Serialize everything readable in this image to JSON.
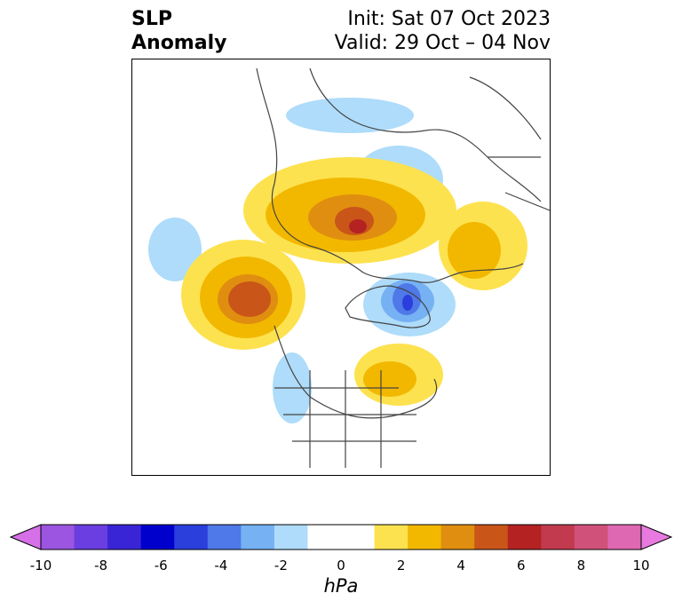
{
  "title": {
    "left_line1": "SLP",
    "left_line2": "Anomaly",
    "right_line1": "Init: Sat 07 Oct 2023",
    "right_line2": "Valid: 29 Oct – 04 Nov"
  },
  "map": {
    "projection": "polar stereographic (North Pole)",
    "variable": "sea level pressure anomaly"
  },
  "colorbar": {
    "units": "hPa",
    "ticks": [
      "-10",
      "-8",
      "-6",
      "-4",
      "-2",
      "0",
      "2",
      "4",
      "6",
      "8",
      "10"
    ],
    "min": -10,
    "max": 10,
    "extend": "both",
    "colors": [
      "#d570e8",
      "#9b55e0",
      "#6a3ee0",
      "#3a25d6",
      "#0000cc",
      "#2a3fdc",
      "#4f78e8",
      "#75b1f3",
      "#aedcfa",
      "#ffffff",
      "#ffffff",
      "#fde24f",
      "#f2b800",
      "#e08e10",
      "#c95519",
      "#b42222",
      "#c23a4e",
      "#d0527a",
      "#df68b2",
      "#e87adf"
    ]
  }
}
